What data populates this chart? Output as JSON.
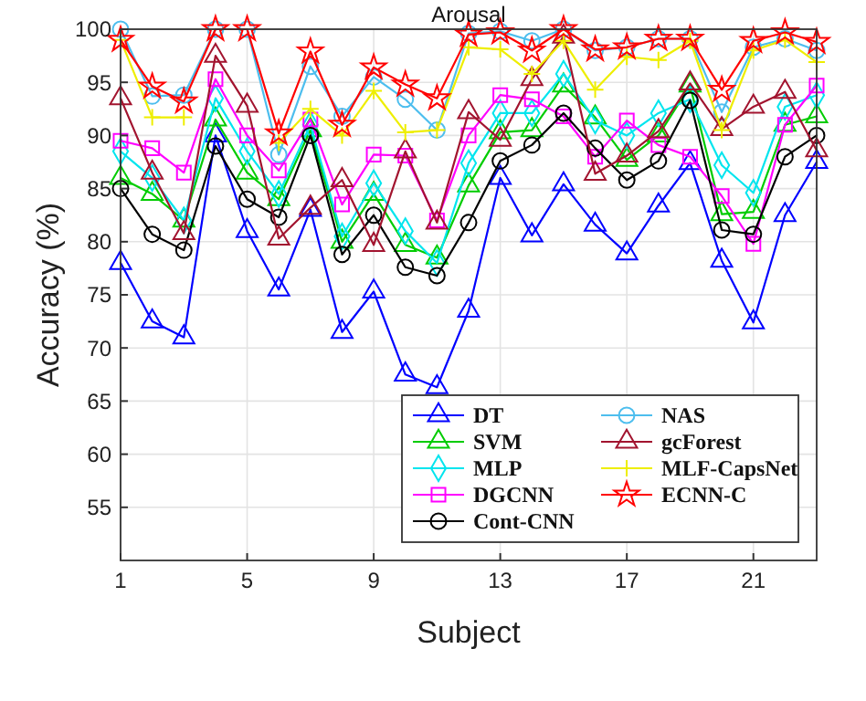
{
  "chart_data": {
    "type": "line",
    "title": "Arousal",
    "xlabel": "Subject",
    "ylabel": "Accuracy (%)",
    "x": [
      1,
      2,
      3,
      4,
      5,
      6,
      7,
      8,
      9,
      10,
      11,
      12,
      13,
      14,
      15,
      16,
      17,
      18,
      19,
      20,
      21,
      22,
      23
    ],
    "xlim": [
      1,
      23
    ],
    "xticks": [
      1,
      5,
      9,
      13,
      17,
      21
    ],
    "ylim": [
      50,
      100
    ],
    "yticks": [
      55,
      60,
      65,
      70,
      75,
      80,
      85,
      90,
      95,
      100
    ],
    "grid": true,
    "legend": "bottom right",
    "line_style": "solid",
    "series": [
      {
        "name": "DT",
        "color": "#0000ff",
        "marker": "triangle",
        "values": [
          78,
          72.5,
          71,
          90,
          81,
          75.5,
          83,
          71.5,
          75.3,
          67.5,
          66.3,
          73.5,
          86,
          80.6,
          85.4,
          81.6,
          78.9,
          83.4,
          87.4,
          78.2,
          72.4,
          82.5,
          87.5
        ]
      },
      {
        "name": "SVM",
        "color": "#00cc00",
        "marker": "triangle",
        "values": [
          86,
          84.5,
          82,
          91.5,
          86.5,
          84,
          90.5,
          80,
          84.5,
          79.7,
          78.5,
          85.3,
          90.3,
          90.5,
          94.7,
          91.7,
          87.7,
          90,
          94.7,
          82.6,
          82.8,
          91,
          91.8
        ]
      },
      {
        "name": "MLP",
        "color": "#00e5ee",
        "marker": "diamond",
        "values": [
          88.5,
          86,
          82,
          93.5,
          88.5,
          84.5,
          91,
          80.5,
          85.5,
          81,
          78,
          87.4,
          92.1,
          92.1,
          95.8,
          91.4,
          90,
          92.1,
          93.4,
          87.2,
          84.6,
          92.7,
          93.8
        ]
      },
      {
        "name": "DGCNN",
        "color": "#ff00ff",
        "marker": "square",
        "values": [
          89.5,
          88.8,
          86.5,
          95.3,
          90,
          86.7,
          91.5,
          83.5,
          88.2,
          88.1,
          82,
          90,
          93.8,
          93.4,
          91.8,
          88,
          91.4,
          89.1,
          88,
          84.3,
          79.8,
          91,
          94.7
        ]
      },
      {
        "name": "Cont-CNN",
        "color": "#000000",
        "marker": "circle",
        "values": [
          85,
          80.7,
          79.2,
          89,
          84,
          82.3,
          90,
          78.8,
          82.5,
          77.6,
          76.8,
          81.8,
          87.6,
          89.1,
          92.1,
          88.8,
          85.8,
          87.6,
          93.3,
          81.1,
          80.7,
          88,
          90
        ]
      },
      {
        "name": "NAS",
        "color": "#4dbeee",
        "marker": "circle",
        "values": [
          100,
          93.7,
          93.8,
          100,
          100,
          88.2,
          96.5,
          91.8,
          95.5,
          93.4,
          90.5,
          99.6,
          99.8,
          98.9,
          100,
          98,
          98.3,
          99.1,
          99.1,
          92.2,
          98.3,
          99.1,
          98
        ]
      },
      {
        "name": "gcForest",
        "color": "#a2142f",
        "marker": "triangle",
        "values": [
          93.5,
          86.5,
          80.8,
          97.5,
          92.8,
          80.3,
          83.2,
          85.8,
          79.7,
          88.5,
          81.8,
          92.2,
          89.6,
          95.3,
          99.3,
          86.4,
          88.1,
          90.4,
          94.9,
          90.6,
          92.7,
          94.1,
          88.6
        ]
      },
      {
        "name": "MLF-CapsNet",
        "color": "#eeee00",
        "marker": "cross",
        "values": [
          99,
          91.7,
          91.7,
          null,
          null,
          89.3,
          92.5,
          90,
          94.2,
          90.3,
          90.5,
          98.3,
          98.1,
          95.8,
          98.9,
          94.3,
          97.4,
          97.1,
          98.9,
          90.5,
          98,
          99,
          96.9
        ]
      },
      {
        "name": "ECNN-C",
        "color": "#ff0000",
        "marker": "star",
        "values": [
          99,
          94.6,
          93.2,
          100,
          100,
          90.2,
          97.9,
          91,
          96.4,
          94.8,
          93.5,
          99.5,
          99.7,
          98,
          100,
          98.1,
          98.3,
          99.1,
          99.1,
          94.3,
          98.9,
          99.7,
          98.8
        ]
      }
    ]
  }
}
